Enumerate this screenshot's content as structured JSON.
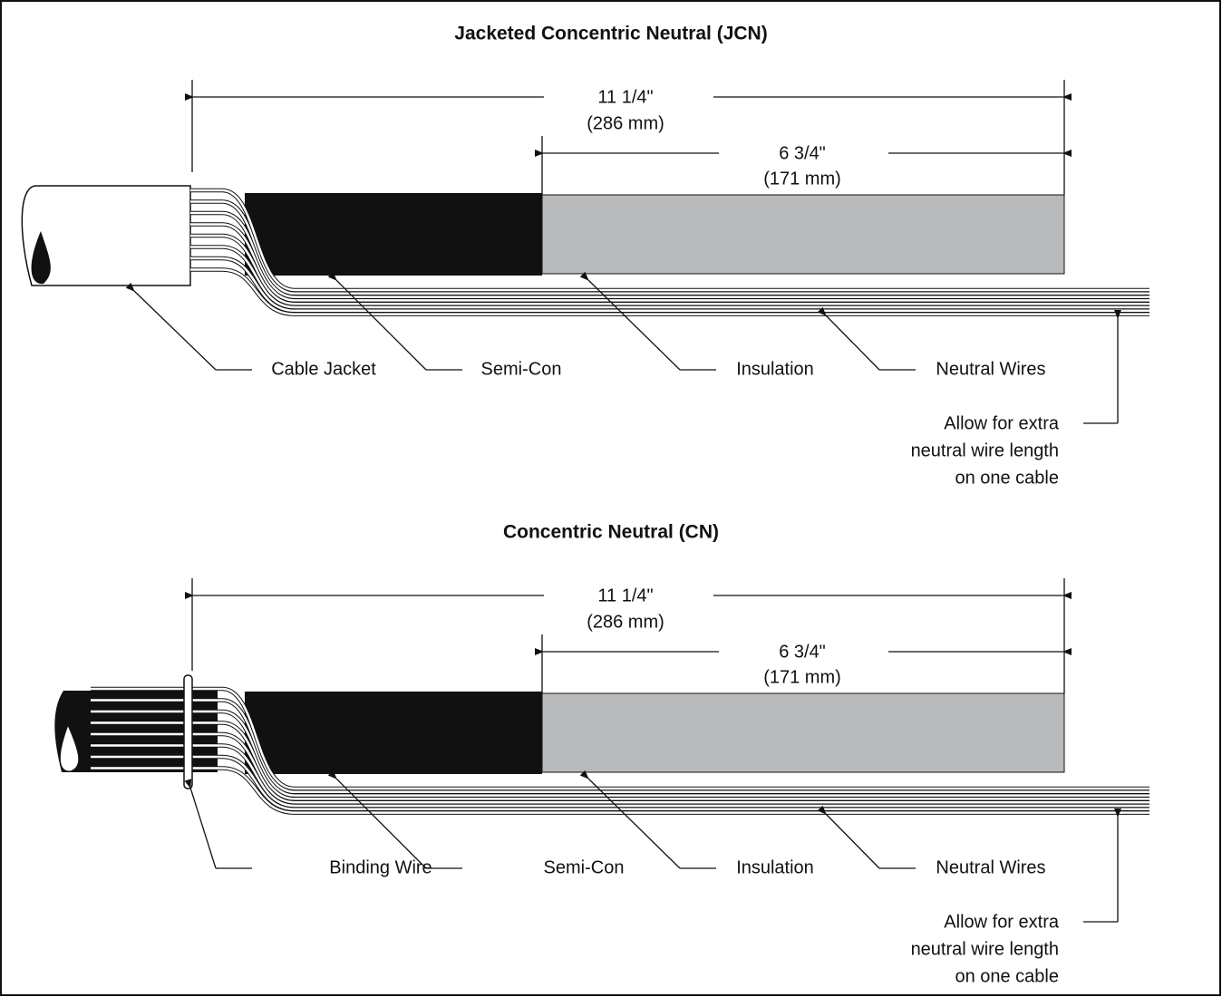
{
  "panels": [
    {
      "title": "Jacketed Concentric Neutral (JCN)",
      "overall": {
        "imperial": "11 1/4\"",
        "metric": "(286 mm)"
      },
      "inner": {
        "imperial": "6 3/4\"",
        "metric": "(171 mm)"
      },
      "labels": [
        "Cable Jacket",
        "Semi-Con",
        "Insulation",
        "Neutral Wires"
      ],
      "note": [
        "Allow for extra",
        "neutral wire length",
        "on one cable"
      ]
    },
    {
      "title": "Concentric Neutral (CN)",
      "overall": {
        "imperial": "11 1/4\"",
        "metric": "(286 mm)"
      },
      "inner": {
        "imperial": "6 3/4\"",
        "metric": "(171 mm)"
      },
      "labels": [
        "Binding Wire",
        "Semi-Con",
        "Insulation",
        "Neutral Wires"
      ],
      "note": [
        "Allow for extra",
        "neutral wire length",
        "on one cable"
      ]
    }
  ]
}
